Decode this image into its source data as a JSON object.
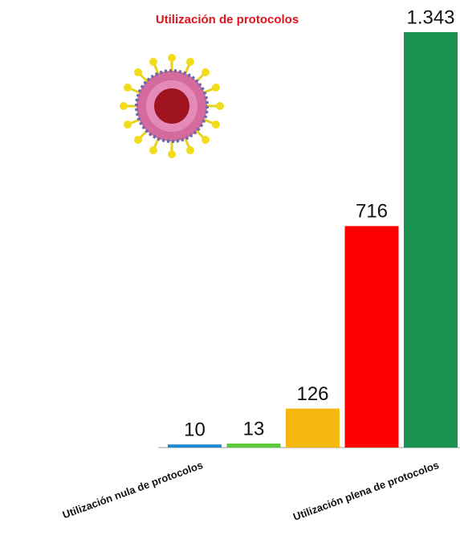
{
  "chart_data": {
    "type": "bar",
    "title": "Utilización de protocolos",
    "categories": [
      "Utilización nula de protocolos",
      null,
      null,
      null,
      "Utilización plena de protocolos"
    ],
    "values": [
      10,
      13,
      126,
      716,
      1343
    ],
    "value_labels": [
      "10",
      "13",
      "126",
      "716",
      "1.343"
    ],
    "colors": [
      "#1f8ad8",
      "#5cc83a",
      "#f5b80f",
      "#ff0000",
      "#1a9352"
    ]
  }
}
